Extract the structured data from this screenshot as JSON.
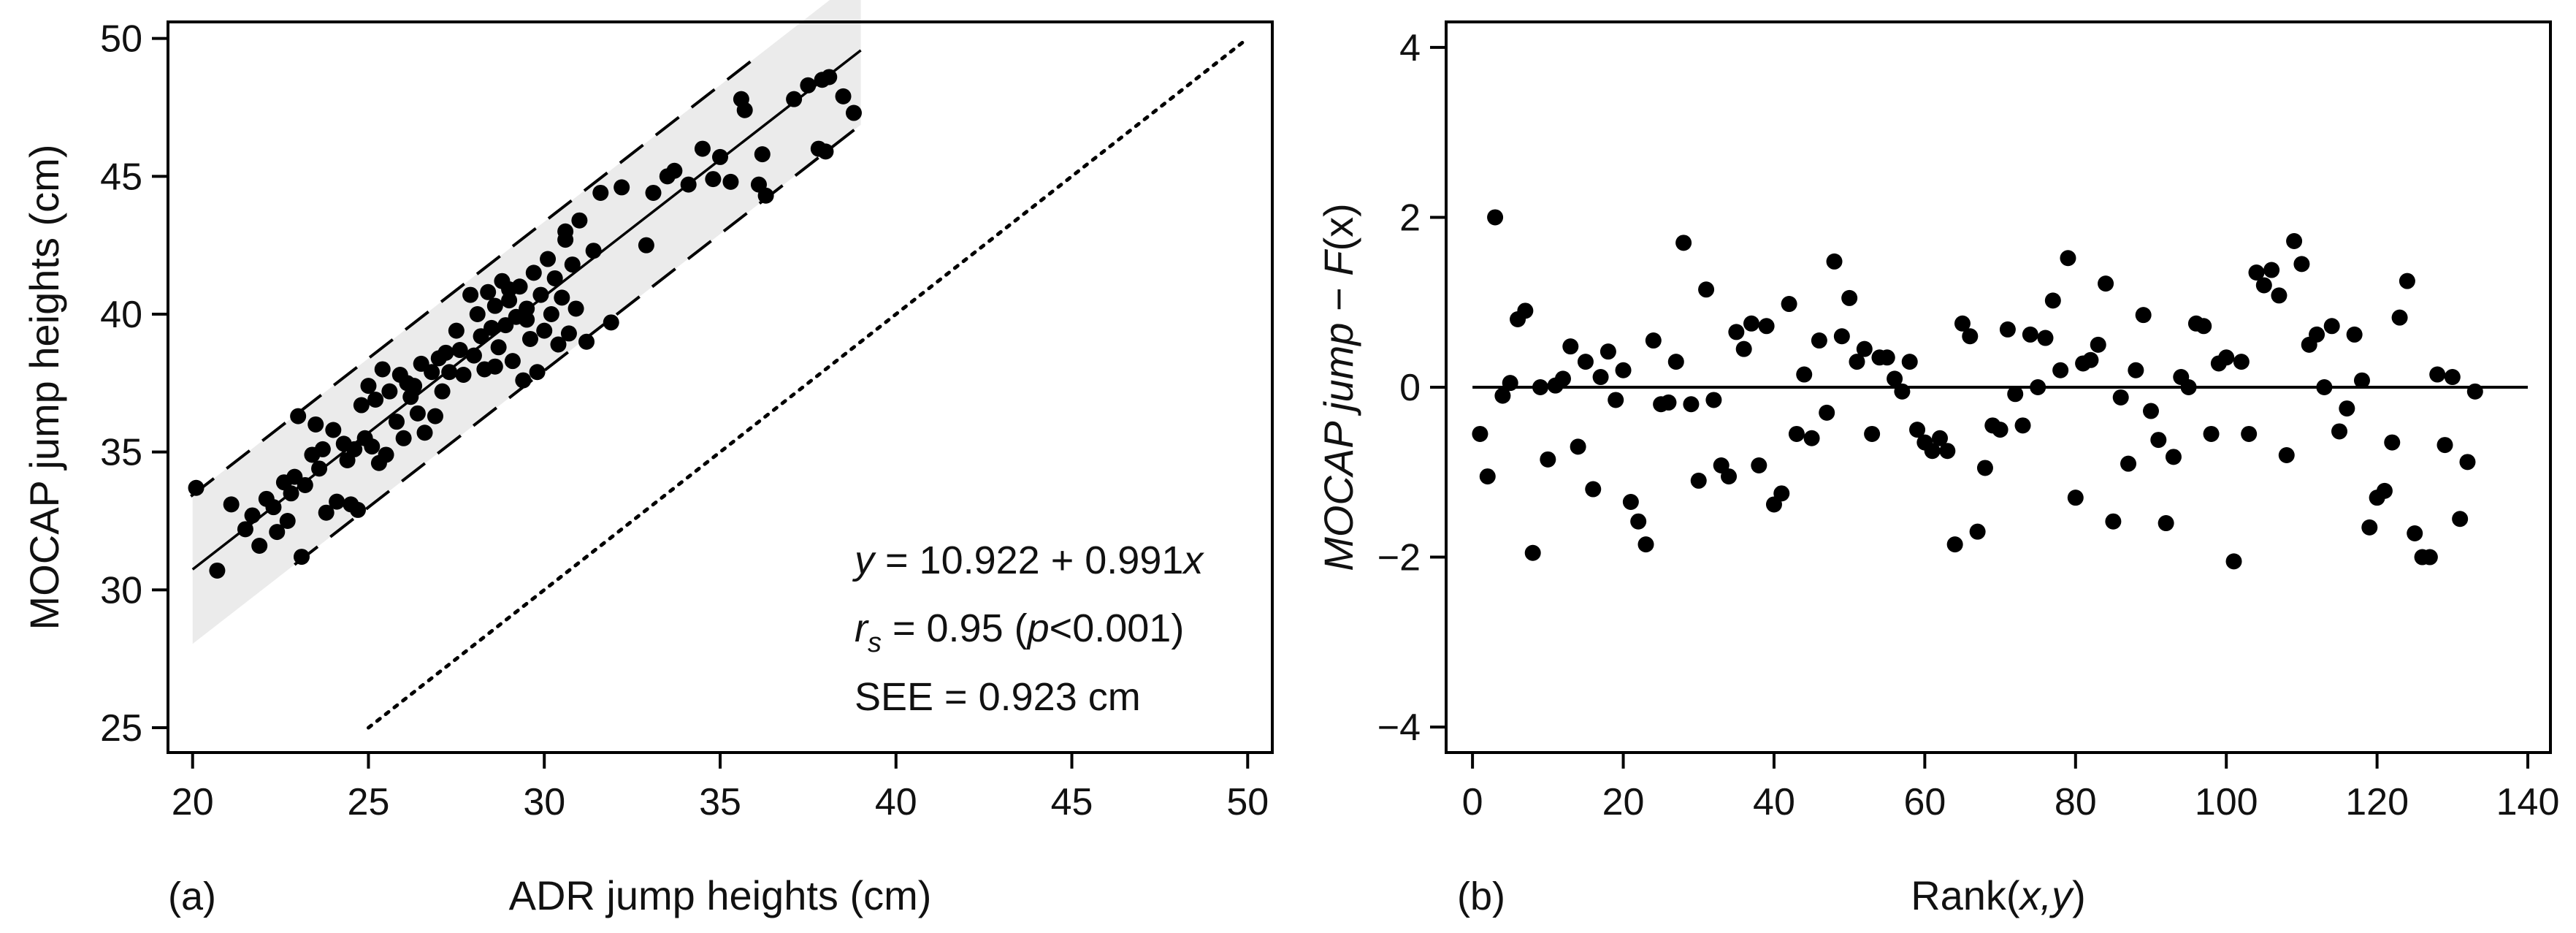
{
  "chart_data": [
    {
      "type": "scatter",
      "panel_label": "(a)",
      "xlabel": "ADR jump heights (cm)",
      "ylabel": "MOCAP jump heights  (cm)",
      "xlim": [
        19.3,
        50.7
      ],
      "ylim": [
        24.1,
        50.6
      ],
      "xticks": [
        "20",
        "25",
        "30",
        "35",
        "40",
        "45",
        "50"
      ],
      "yticks": [
        "25",
        "30",
        "35",
        "40",
        "45",
        "50"
      ],
      "regression": {
        "intercept": 10.922,
        "slope": 0.991,
        "x_range": [
          20,
          39
        ]
      },
      "limits_offset": 2.7,
      "identity_line": {
        "x": [
          25,
          50
        ],
        "y": [
          25,
          50
        ]
      },
      "annotations": {
        "equation": {
          "y": "y",
          "rest": " = 10.922 + 0.991",
          "x": "x"
        },
        "rs": {
          "r": "r",
          "s": "s",
          "pre": " = 0.95 (",
          "p": "p",
          "post": "<0.001)"
        },
        "see": "SEE = 0.923 cm"
      },
      "points": [
        [
          20.1,
          33.7
        ],
        [
          20.7,
          30.7
        ],
        [
          21.1,
          33.1
        ],
        [
          21.5,
          32.2
        ],
        [
          21.7,
          32.7
        ],
        [
          21.9,
          31.6
        ],
        [
          22.1,
          33.3
        ],
        [
          22.3,
          33.0
        ],
        [
          22.4,
          32.1
        ],
        [
          22.6,
          33.9
        ],
        [
          22.8,
          33.5
        ],
        [
          22.9,
          34.1
        ],
        [
          23.0,
          36.3
        ],
        [
          23.1,
          31.2
        ],
        [
          23.2,
          33.8
        ],
        [
          23.4,
          34.9
        ],
        [
          23.5,
          36.0
        ],
        [
          23.7,
          35.1
        ],
        [
          23.8,
          32.8
        ],
        [
          24.0,
          35.8
        ],
        [
          24.1,
          33.2
        ],
        [
          24.3,
          35.3
        ],
        [
          24.4,
          34.7
        ],
        [
          24.5,
          33.1
        ],
        [
          24.6,
          35.1
        ],
        [
          24.7,
          32.9
        ],
        [
          24.8,
          36.7
        ],
        [
          24.9,
          35.5
        ],
        [
          25.0,
          37.4
        ],
        [
          25.1,
          35.2
        ],
        [
          25.2,
          36.9
        ],
        [
          25.3,
          34.6
        ],
        [
          25.4,
          38.0
        ],
        [
          25.5,
          34.9
        ],
        [
          25.6,
          37.2
        ],
        [
          25.8,
          36.1
        ],
        [
          25.9,
          37.8
        ],
        [
          26.0,
          35.5
        ],
        [
          26.1,
          37.5
        ],
        [
          26.2,
          37.0
        ],
        [
          26.4,
          36.4
        ],
        [
          26.5,
          38.2
        ],
        [
          26.6,
          35.7
        ],
        [
          26.8,
          37.9
        ],
        [
          26.9,
          36.3
        ],
        [
          27.0,
          38.4
        ],
        [
          27.1,
          37.2
        ],
        [
          27.3,
          37.9
        ],
        [
          27.5,
          39.4
        ],
        [
          27.6,
          38.7
        ],
        [
          27.7,
          37.8
        ],
        [
          27.9,
          40.7
        ],
        [
          28.0,
          38.5
        ],
        [
          28.1,
          40.0
        ],
        [
          28.2,
          39.2
        ],
        [
          28.3,
          38.0
        ],
        [
          28.4,
          40.8
        ],
        [
          28.5,
          39.5
        ],
        [
          28.6,
          40.3
        ],
        [
          28.7,
          38.8
        ],
        [
          28.8,
          41.2
        ],
        [
          28.9,
          39.6
        ],
        [
          29.0,
          40.5
        ],
        [
          29.1,
          38.3
        ],
        [
          29.2,
          39.9
        ],
        [
          29.3,
          41.0
        ],
        [
          29.4,
          37.6
        ],
        [
          29.5,
          40.2
        ],
        [
          29.6,
          39.1
        ],
        [
          29.7,
          41.5
        ],
        [
          29.8,
          37.9
        ],
        [
          29.9,
          40.7
        ],
        [
          30.0,
          39.4
        ],
        [
          30.1,
          42.0
        ],
        [
          30.2,
          40.0
        ],
        [
          30.3,
          41.3
        ],
        [
          30.4,
          38.9
        ],
        [
          30.5,
          40.6
        ],
        [
          30.6,
          42.7
        ],
        [
          30.7,
          39.3
        ],
        [
          30.8,
          41.8
        ],
        [
          30.9,
          40.2
        ],
        [
          31.0,
          43.4
        ],
        [
          31.2,
          39.0
        ],
        [
          31.4,
          42.3
        ],
        [
          31.6,
          44.4
        ],
        [
          31.9,
          39.7
        ],
        [
          32.2,
          44.6
        ],
        [
          32.9,
          42.5
        ],
        [
          33.1,
          44.4
        ],
        [
          33.5,
          45.0
        ],
        [
          33.7,
          45.2
        ],
        [
          34.1,
          44.7
        ],
        [
          34.5,
          46.0
        ],
        [
          34.8,
          44.9
        ],
        [
          35.0,
          45.7
        ],
        [
          35.3,
          44.8
        ],
        [
          35.6,
          47.8
        ],
        [
          35.7,
          47.4
        ],
        [
          36.1,
          44.7
        ],
        [
          36.2,
          45.8
        ],
        [
          36.3,
          44.3
        ],
        [
          37.1,
          47.8
        ],
        [
          37.5,
          48.3
        ],
        [
          37.8,
          46.0
        ],
        [
          37.9,
          48.5
        ],
        [
          38.0,
          45.9
        ],
        [
          38.1,
          48.6
        ],
        [
          38.5,
          47.9
        ],
        [
          38.8,
          47.3
        ],
        [
          22.7,
          32.5
        ],
        [
          27.2,
          38.6
        ],
        [
          28.6,
          38.1
        ],
        [
          29.5,
          39.8
        ],
        [
          30.6,
          43.0
        ],
        [
          23.6,
          34.4
        ],
        [
          26.3,
          37.4
        ],
        [
          29.0,
          40.9
        ]
      ]
    },
    {
      "type": "scatter",
      "panel_label": "(b)",
      "xlabel_pre": "Rank(",
      "xlabel_it": "x,y",
      "xlabel_post": ")",
      "ylabel_left": "MOCAP jump",
      "ylabel_mid": "  − ",
      "ylabel_F": "F",
      "ylabel_paren": "(x)",
      "xlim": [
        -3.5,
        143
      ],
      "ylim": [
        -4.3,
        4.3
      ],
      "xticks": [
        "0",
        "20",
        "40",
        "60",
        "80",
        "100",
        "120",
        "140"
      ],
      "yticks": [
        "4",
        "2",
        "0",
        "−2",
        "−4"
      ],
      "zero_line": {
        "x": [
          0,
          140
        ],
        "y": 0
      },
      "points": [
        [
          1,
          -0.55
        ],
        [
          2,
          -1.05
        ],
        [
          3,
          2.0
        ],
        [
          4,
          -0.1
        ],
        [
          5,
          0.05
        ],
        [
          6,
          0.8
        ],
        [
          7,
          0.9
        ],
        [
          8,
          -1.95
        ],
        [
          9,
          0.0
        ],
        [
          10,
          -0.85
        ],
        [
          11,
          0.02
        ],
        [
          12,
          0.1
        ],
        [
          13,
          0.48
        ],
        [
          14,
          -0.7
        ],
        [
          15,
          0.3
        ],
        [
          16,
          -1.2
        ],
        [
          17,
          0.12
        ],
        [
          18,
          0.42
        ],
        [
          19,
          -0.15
        ],
        [
          20,
          0.2
        ],
        [
          21,
          -1.35
        ],
        [
          22,
          -1.58
        ],
        [
          23,
          -1.85
        ],
        [
          24,
          0.55
        ],
        [
          25,
          -0.2
        ],
        [
          26,
          -0.18
        ],
        [
          27,
          0.3
        ],
        [
          28,
          1.7
        ],
        [
          29,
          -0.2
        ],
        [
          30,
          -1.1
        ],
        [
          31,
          1.15
        ],
        [
          32,
          -0.15
        ],
        [
          33,
          -0.92
        ],
        [
          34,
          -1.05
        ],
        [
          35,
          0.65
        ],
        [
          36,
          0.45
        ],
        [
          37,
          0.75
        ],
        [
          38,
          -0.92
        ],
        [
          39,
          0.72
        ],
        [
          40,
          -1.38
        ],
        [
          41,
          -1.25
        ],
        [
          42,
          0.98
        ],
        [
          43,
          -0.55
        ],
        [
          44,
          0.15
        ],
        [
          45,
          -0.6
        ],
        [
          46,
          0.55
        ],
        [
          47,
          -0.3
        ],
        [
          48,
          1.48
        ],
        [
          49,
          0.6
        ],
        [
          50,
          1.05
        ],
        [
          51,
          0.3
        ],
        [
          52,
          0.45
        ],
        [
          53,
          -0.55
        ],
        [
          54,
          0.35
        ],
        [
          55,
          0.35
        ],
        [
          56,
          0.1
        ],
        [
          57,
          -0.05
        ],
        [
          58,
          0.3
        ],
        [
          59,
          -0.5
        ],
        [
          60,
          -0.65
        ],
        [
          61,
          -0.75
        ],
        [
          62,
          -0.6
        ],
        [
          63,
          -0.75
        ],
        [
          64,
          -1.85
        ],
        [
          65,
          0.75
        ],
        [
          66,
          0.6
        ],
        [
          67,
          -1.7
        ],
        [
          68,
          -0.95
        ],
        [
          69,
          -0.45
        ],
        [
          70,
          -0.5
        ],
        [
          71,
          0.68
        ],
        [
          72,
          -0.08
        ],
        [
          73,
          -0.45
        ],
        [
          74,
          0.62
        ],
        [
          75,
          0.0
        ],
        [
          76,
          0.58
        ],
        [
          77,
          1.02
        ],
        [
          78,
          0.2
        ],
        [
          79,
          1.52
        ],
        [
          80,
          -1.3
        ],
        [
          81,
          0.28
        ],
        [
          82,
          0.32
        ],
        [
          83,
          0.5
        ],
        [
          84,
          1.22
        ],
        [
          85,
          -1.58
        ],
        [
          86,
          -0.12
        ],
        [
          87,
          -0.9
        ],
        [
          88,
          0.2
        ],
        [
          89,
          0.85
        ],
        [
          90,
          -0.28
        ],
        [
          91,
          -0.62
        ],
        [
          92,
          -1.6
        ],
        [
          93,
          -0.82
        ],
        [
          94,
          0.12
        ],
        [
          95,
          0.0
        ],
        [
          96,
          0.75
        ],
        [
          97,
          0.72
        ],
        [
          98,
          -0.55
        ],
        [
          99,
          0.28
        ],
        [
          100,
          0.35
        ],
        [
          101,
          -2.05
        ],
        [
          102,
          0.3
        ],
        [
          103,
          -0.55
        ],
        [
          104,
          1.35
        ],
        [
          105,
          1.2
        ],
        [
          106,
          1.38
        ],
        [
          107,
          1.08
        ],
        [
          108,
          -0.8
        ],
        [
          109,
          1.72
        ],
        [
          110,
          1.45
        ],
        [
          111,
          0.5
        ],
        [
          112,
          0.62
        ],
        [
          113,
          0.0
        ],
        [
          114,
          0.72
        ],
        [
          115,
          -0.52
        ],
        [
          116,
          -0.25
        ],
        [
          117,
          0.62
        ],
        [
          118,
          0.08
        ],
        [
          119,
          -1.65
        ],
        [
          120,
          -1.3
        ],
        [
          121,
          -1.22
        ],
        [
          122,
          -0.65
        ],
        [
          123,
          0.82
        ],
        [
          124,
          1.25
        ],
        [
          125,
          -1.72
        ],
        [
          126,
          -2.0
        ],
        [
          127,
          -2.0
        ],
        [
          128,
          0.15
        ],
        [
          129,
          -0.68
        ],
        [
          130,
          0.12
        ],
        [
          131,
          -1.55
        ],
        [
          132,
          -0.88
        ],
        [
          133,
          -0.05
        ]
      ]
    }
  ]
}
